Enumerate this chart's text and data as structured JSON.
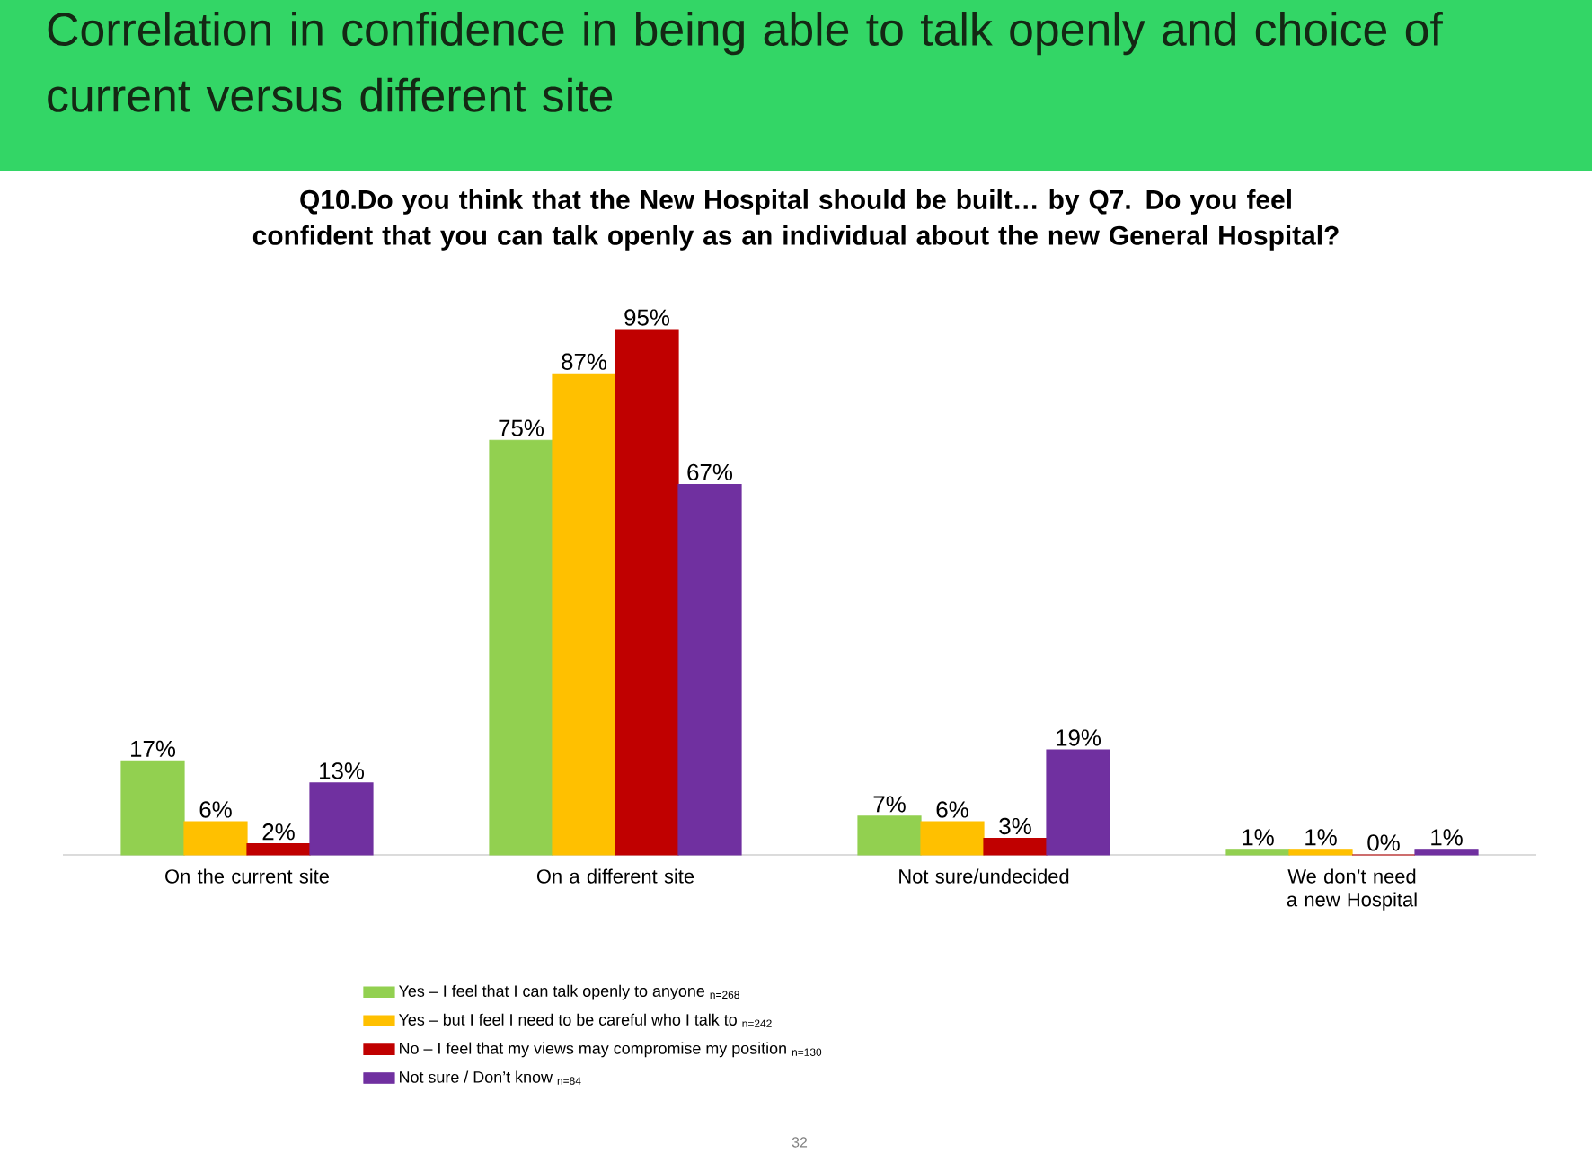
{
  "chart_data": {
    "type": "bar",
    "title": "Correlation in confidence in being able to talk openly and choice of current versus different site",
    "subtitle": "Q10.Do you think that the New Hospital should be built… by Q7. Do you feel confident that you can talk openly as an individual about the new General Hospital?",
    "categories": [
      "On the current site",
      "On a different site",
      "Not sure/undecided",
      "We don’t need a new Hospital"
    ],
    "series": [
      {
        "name": "Yes – I feel that I can talk openly to anyone $_{n=268}$",
        "color": "#92d050",
        "values": [
          17,
          75,
          7,
          1
        ],
        "value_labels": [
          "17%",
          "75%",
          "7%",
          "1%"
        ]
      },
      {
        "name": "Yes – but I feel I need to be careful who I talk to $_{n=242}$",
        "color": "#ffc000",
        "values": [
          6,
          87,
          6,
          1
        ],
        "value_labels": [
          "6%",
          "87%",
          "6%",
          "1%"
        ]
      },
      {
        "name": "No – I feel that my views may compromise my position $_{n=130}$",
        "color": "#c00000",
        "values": [
          2,
          95,
          3,
          0
        ],
        "value_labels": [
          "2%",
          "95%",
          "3%",
          "0%"
        ]
      },
      {
        "name": "Not sure / Don’t know $_{n=84}$",
        "color": "#7030a0",
        "values": [
          13,
          67,
          19,
          1
        ],
        "value_labels": [
          "13%",
          "67%",
          "19%",
          "1%"
        ]
      }
    ],
    "legend": "bottom",
    "annotations": [
      "32"
    ]
  }
}
